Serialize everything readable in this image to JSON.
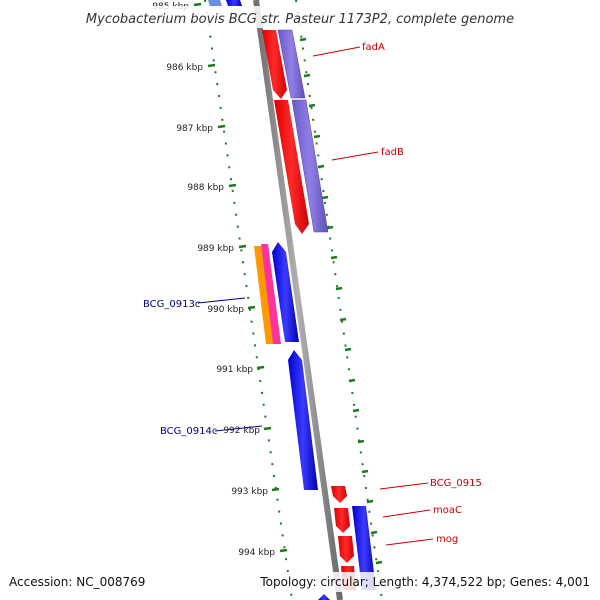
{
  "title": "Mycobacterium bovis BCG str. Pasteur 1173P2, complete genome",
  "footer": {
    "accession": "Accession: NC_008769",
    "summary": "Topology: circular; Length: 4,374,522 bp; Genes: 4,001"
  },
  "colors": {
    "backbone": "#8a8a8a",
    "tick": "#1f7a1f",
    "label_forward": "#cc0000",
    "label_reverse": "#00008b",
    "gene_red": "#ff0000",
    "gene_blue": "#0000ee",
    "gene_purple": "#7b68d6",
    "gene_orange": "#ff9900",
    "gene_pink": "#ff3399"
  },
  "ticks": [
    "985 kbp",
    "986 kbp",
    "987 kbp",
    "988 kbp",
    "989 kbp",
    "990 kbp",
    "991 kbp",
    "992 kbp",
    "993 kbp",
    "994 kbp"
  ],
  "gene_labels": [
    {
      "text": "fadA",
      "strand": "forward"
    },
    {
      "text": "fadB",
      "strand": "forward"
    },
    {
      "text": "BCG_0913c",
      "strand": "reverse"
    },
    {
      "text": "BCG_0914c",
      "strand": "reverse"
    },
    {
      "text": "BCG_0915",
      "strand": "forward"
    },
    {
      "text": "moaC",
      "strand": "forward"
    },
    {
      "text": "mog",
      "strand": "forward"
    }
  ]
}
